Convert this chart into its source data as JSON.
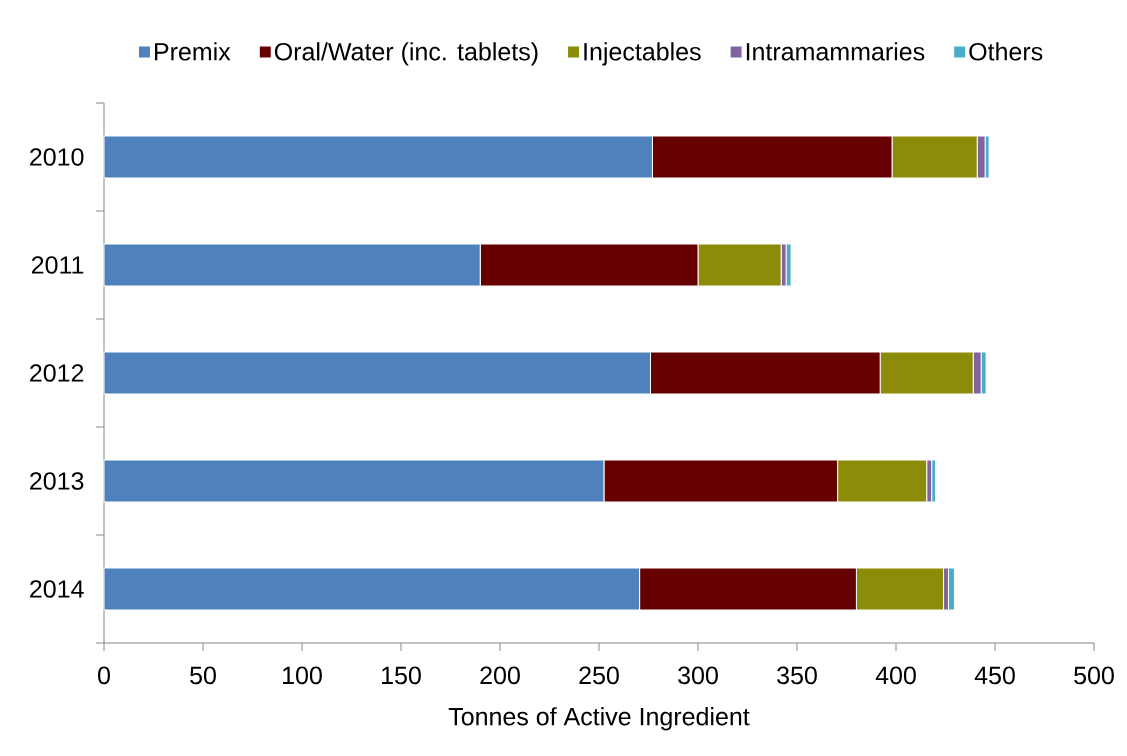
{
  "chart_data": {
    "type": "bar",
    "orientation": "horizontal",
    "stacked": true,
    "xlabel": "Tonnes of Active Ingredient",
    "categories": [
      "2010",
      "2011",
      "2012",
      "2013",
      "2014"
    ],
    "series": [
      {
        "name": "Premix",
        "color": "#4f81bd",
        "values": [
          277,
          190,
          276,
          252.5,
          270.5
        ]
      },
      {
        "name": "Oral/Water (inc. tablets)",
        "color": "#660000",
        "values": [
          121,
          110,
          116,
          118,
          109.5
        ]
      },
      {
        "name": "Injectables",
        "color": "#8c8c08",
        "values": [
          43,
          42,
          47,
          45,
          44
        ]
      },
      {
        "name": "Intramammaries",
        "color": "#8064a2",
        "values": [
          4,
          2.5,
          4,
          2.5,
          2.5
        ]
      },
      {
        "name": "Others",
        "color": "#4bacc6",
        "values": [
          2,
          2.5,
          2.5,
          2,
          3
        ]
      }
    ],
    "xlim": [
      0,
      500
    ],
    "xticks": [
      0,
      50,
      100,
      150,
      200,
      250,
      300,
      350,
      400,
      450,
      500
    ],
    "legend": "top"
  }
}
